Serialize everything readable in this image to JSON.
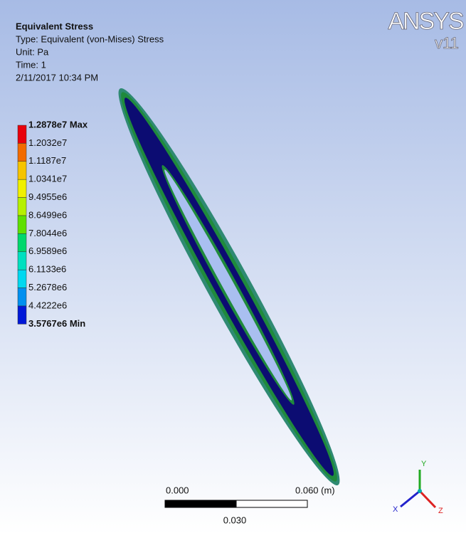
{
  "header": {
    "title": "Equivalent Stress",
    "type": "Type: Equivalent (von-Mises) Stress",
    "unit": "Unit: Pa",
    "time": "Time: 1",
    "date": "2/11/2017 10:34 PM"
  },
  "logo": {
    "name": "ANSYS",
    "version": "v11"
  },
  "legend": {
    "labels": [
      "1.2878e7 Max",
      "1.2032e7",
      "1.1187e7",
      "1.0341e7",
      "9.4955e6",
      "8.6499e6",
      "7.8044e6",
      "6.9589e6",
      "6.1133e6",
      "5.2678e6",
      "4.4222e6",
      "3.5767e6 Min"
    ],
    "colors": [
      "#e8000b",
      "#f26b00",
      "#f6c400",
      "#f0f000",
      "#b6f000",
      "#5fe000",
      "#00d86c",
      "#00e0c0",
      "#00d8f0",
      "#0090f0",
      "#0018d8"
    ]
  },
  "scale_bar": {
    "start": "0.000",
    "end": "0.060 (m)",
    "mid": "0.030"
  },
  "triad": {
    "y": "Y",
    "x": "X",
    "z": "Z"
  }
}
